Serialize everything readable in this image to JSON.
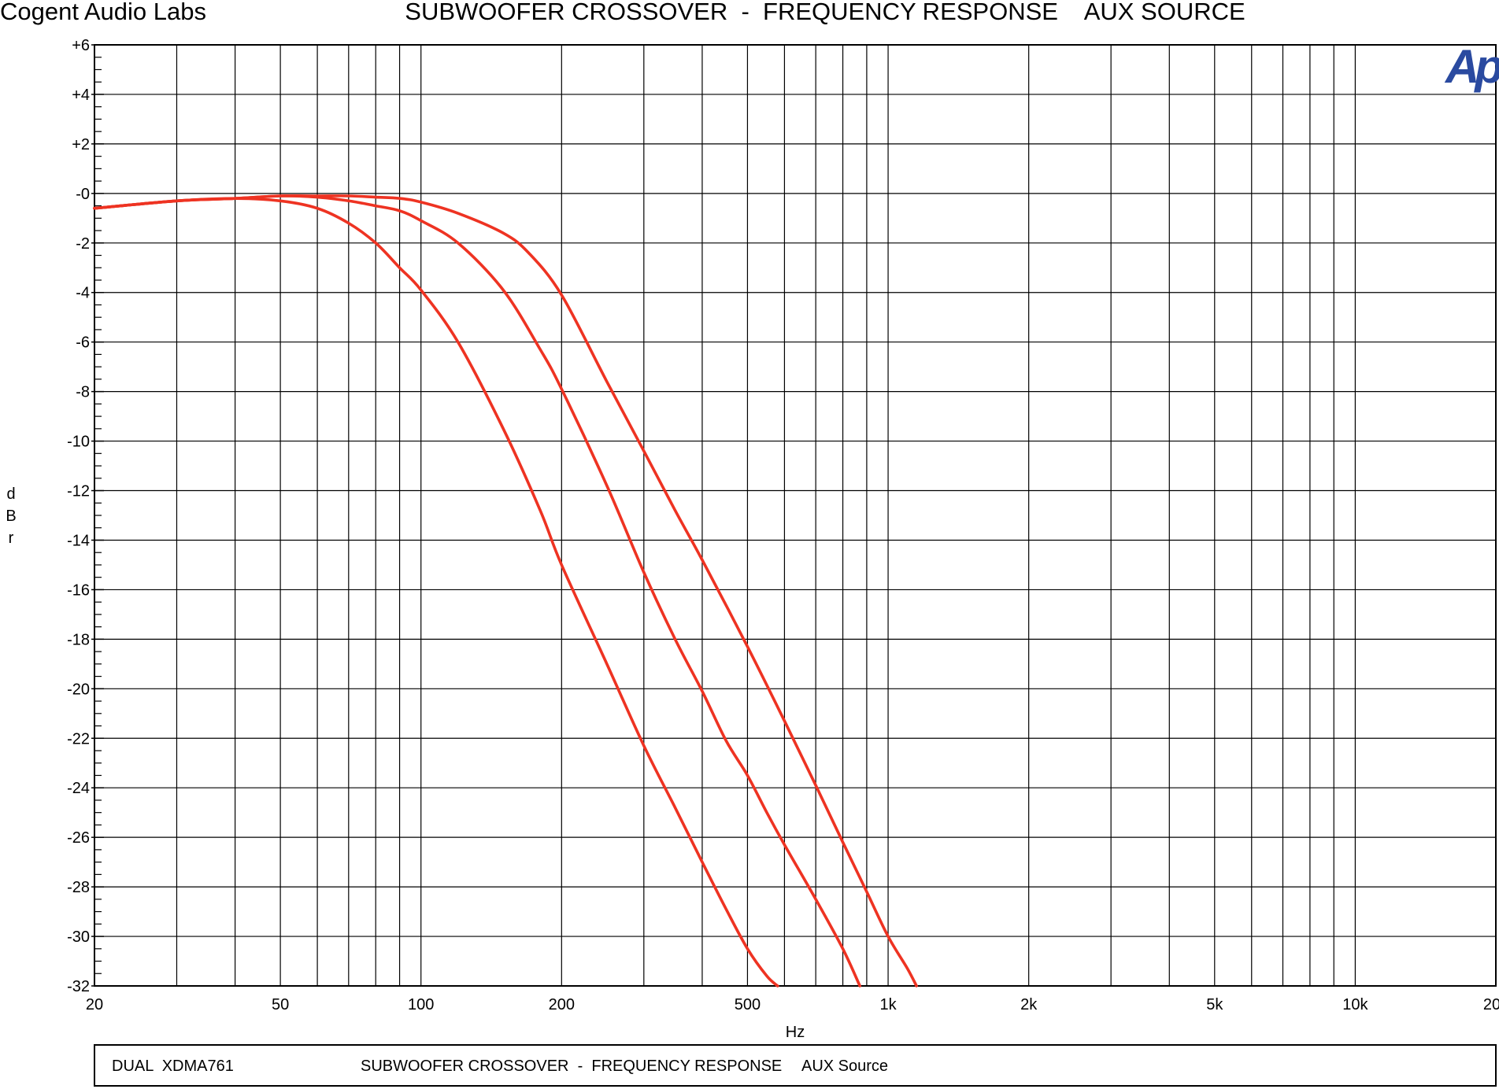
{
  "header": {
    "company": "Cogent Audio Labs",
    "title": "SUBWOOFER CROSSOVER  -  FREQUENCY RESPONSE    AUX SOURCE"
  },
  "logo": {
    "text": "Ap",
    "color": "#2a4aa0"
  },
  "footer": {
    "model": "DUAL  XDMA761",
    "description": "SUBWOOFER CROSSOVER  -  FREQUENCY RESPONSE",
    "source": "AUX Source"
  },
  "colors": {
    "trace": "#ee3322",
    "grid": "#000000"
  },
  "chart_data": {
    "type": "line",
    "title": "SUBWOOFER CROSSOVER  -  FREQUENCY RESPONSE    AUX SOURCE",
    "xlabel": "Hz",
    "ylabel": "dBr",
    "xscale": "log",
    "xlim": [
      20,
      20000
    ],
    "ylim": [
      -32,
      6
    ],
    "grid": true,
    "legend": "none",
    "x_ticks": [
      {
        "value": 20,
        "label": "20"
      },
      {
        "value": 50,
        "label": "50"
      },
      {
        "value": 100,
        "label": "100"
      },
      {
        "value": 200,
        "label": "200"
      },
      {
        "value": 500,
        "label": "500"
      },
      {
        "value": 1000,
        "label": "1k"
      },
      {
        "value": 2000,
        "label": "2k"
      },
      {
        "value": 5000,
        "label": "5k"
      },
      {
        "value": 10000,
        "label": "10k"
      },
      {
        "value": 20000,
        "label": "20k"
      }
    ],
    "y_ticks": [
      {
        "value": 6,
        "label": "+6"
      },
      {
        "value": 4,
        "label": "+4"
      },
      {
        "value": 2,
        "label": "+2"
      },
      {
        "value": 0,
        "label": "-0"
      },
      {
        "value": -2,
        "label": "-2"
      },
      {
        "value": -4,
        "label": "-4"
      },
      {
        "value": -6,
        "label": "-6"
      },
      {
        "value": -8,
        "label": "-8"
      },
      {
        "value": -10,
        "label": "-10"
      },
      {
        "value": -12,
        "label": "-12"
      },
      {
        "value": -14,
        "label": "-14"
      },
      {
        "value": -16,
        "label": "-16"
      },
      {
        "value": -18,
        "label": "-18"
      },
      {
        "value": -20,
        "label": "-20"
      },
      {
        "value": -22,
        "label": "-22"
      },
      {
        "value": -24,
        "label": "-24"
      },
      {
        "value": -26,
        "label": "-26"
      },
      {
        "value": -28,
        "label": "-28"
      },
      {
        "value": -30,
        "label": "-30"
      },
      {
        "value": -32,
        "label": "-32"
      }
    ],
    "series": [
      {
        "x": [
          20,
          30,
          40,
          50,
          60,
          70,
          80,
          90,
          100,
          120,
          150,
          180,
          200,
          250,
          300,
          350,
          400,
          450,
          500,
          550,
          580
        ],
        "y": [
          -0.6,
          -0.3,
          -0.2,
          -0.3,
          -0.6,
          -1.2,
          -2.0,
          -3.0,
          -3.9,
          -6.0,
          -9.5,
          -12.8,
          -15.0,
          -19.0,
          -22.3,
          -24.8,
          -27.0,
          -28.9,
          -30.5,
          -31.6,
          -32.0
        ]
      },
      {
        "x": [
          20,
          30,
          40,
          50,
          60,
          70,
          80,
          90,
          100,
          120,
          150,
          180,
          200,
          250,
          300,
          350,
          400,
          450,
          500,
          550,
          600,
          700,
          800,
          870
        ],
        "y": [
          -0.6,
          -0.3,
          -0.2,
          -0.1,
          -0.15,
          -0.3,
          -0.5,
          -0.7,
          -1.1,
          -2.0,
          -3.9,
          -6.3,
          -7.9,
          -11.8,
          -15.3,
          -18.0,
          -20.1,
          -22.1,
          -23.5,
          -25.0,
          -26.3,
          -28.5,
          -30.5,
          -32.0
        ]
      },
      {
        "x": [
          20,
          30,
          40,
          50,
          60,
          70,
          80,
          90,
          100,
          120,
          150,
          170,
          200,
          250,
          300,
          350,
          400,
          500,
          600,
          700,
          800,
          900,
          1000,
          1100,
          1150
        ],
        "y": [
          -0.6,
          -0.3,
          -0.2,
          -0.1,
          -0.1,
          -0.1,
          -0.15,
          -0.2,
          -0.35,
          -0.8,
          -1.6,
          -2.4,
          -4.1,
          -7.6,
          -10.4,
          -12.8,
          -14.8,
          -18.3,
          -21.3,
          -23.9,
          -26.2,
          -28.2,
          -30.0,
          -31.3,
          -32.0
        ]
      }
    ]
  }
}
